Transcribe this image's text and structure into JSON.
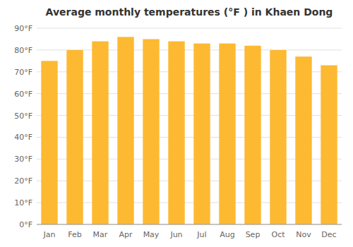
{
  "chart_data": {
    "type": "bar",
    "title": "Average monthly temperatures (°F ) in Khaen Dong",
    "categories": [
      "Jan",
      "Feb",
      "Mar",
      "Apr",
      "May",
      "Jun",
      "Jul",
      "Aug",
      "Sep",
      "Oct",
      "Nov",
      "Dec"
    ],
    "values": [
      75,
      80,
      84,
      86,
      85,
      84,
      83,
      83,
      82,
      80,
      77,
      73
    ],
    "color": "#FDB931",
    "ylim": [
      0,
      90
    ],
    "yticks": [
      {
        "value": 0,
        "label": "0°F"
      },
      {
        "value": 10,
        "label": "10°F"
      },
      {
        "value": 20,
        "label": "20°F"
      },
      {
        "value": 30,
        "label": "30°F"
      },
      {
        "value": 40,
        "label": "40°F"
      },
      {
        "value": 50,
        "label": "50°F"
      },
      {
        "value": 60,
        "label": "60°F"
      },
      {
        "value": 70,
        "label": "70°F"
      },
      {
        "value": 80,
        "label": "80°F"
      },
      {
        "value": 90,
        "label": "90°F"
      }
    ],
    "grid": true
  }
}
